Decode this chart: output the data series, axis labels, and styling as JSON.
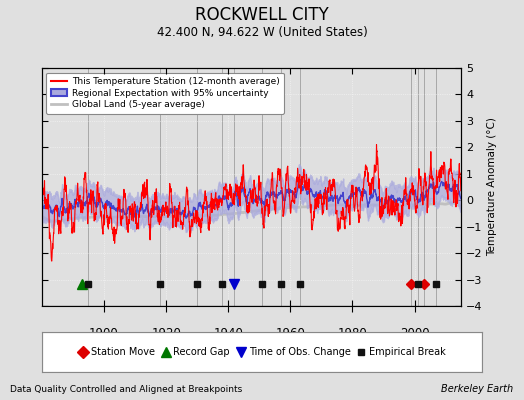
{
  "title": "ROCKWELL CITY",
  "subtitle": "42.400 N, 94.622 W (United States)",
  "ylabel": "Temperature Anomaly (°C)",
  "xlabel_note": "Data Quality Controlled and Aligned at Breakpoints",
  "credit": "Berkeley Earth",
  "ylim": [
    -4,
    5
  ],
  "yticks": [
    -4,
    -3,
    -2,
    -1,
    0,
    1,
    2,
    3,
    4,
    5
  ],
  "xlim": [
    1880,
    2015
  ],
  "xticks": [
    1900,
    1920,
    1940,
    1960,
    1980,
    2000
  ],
  "bg_color": "#e0e0e0",
  "plot_bg_color": "#e0e0e0",
  "station_color": "#ff0000",
  "regional_color": "#4444cc",
  "regional_fill_color": "#aaaadd",
  "global_color": "#c0c0c0",
  "legend_items": [
    {
      "label": "This Temperature Station (12-month average)",
      "color": "#ff0000",
      "lw": 1.2
    },
    {
      "label": "Regional Expectation with 95% uncertainty",
      "color": "#4444cc",
      "lw": 1.5
    },
    {
      "label": "Global Land (5-year average)",
      "color": "#c0c0c0",
      "lw": 2.5
    }
  ],
  "marker_events": {
    "station_move": {
      "years": [
        1999,
        2003
      ],
      "color": "#dd0000",
      "marker": "D",
      "label": "Station Move"
    },
    "record_gap": {
      "years": [
        1893
      ],
      "color": "#007700",
      "marker": "^",
      "label": "Record Gap"
    },
    "obs_change": {
      "years": [
        1942
      ],
      "color": "#0000cc",
      "marker": "v",
      "label": "Time of Obs. Change"
    },
    "empirical_break": {
      "years": [
        1895,
        1918,
        1930,
        1938,
        1951,
        1957,
        1963,
        2001,
        2007
      ],
      "color": "#111111",
      "marker": "s",
      "label": "Empirical Break"
    }
  },
  "vert_lines": [
    1895,
    1918,
    1930,
    1938,
    1942,
    1951,
    1957,
    1963,
    1999,
    2001,
    2003,
    2007
  ],
  "seed": 12345
}
